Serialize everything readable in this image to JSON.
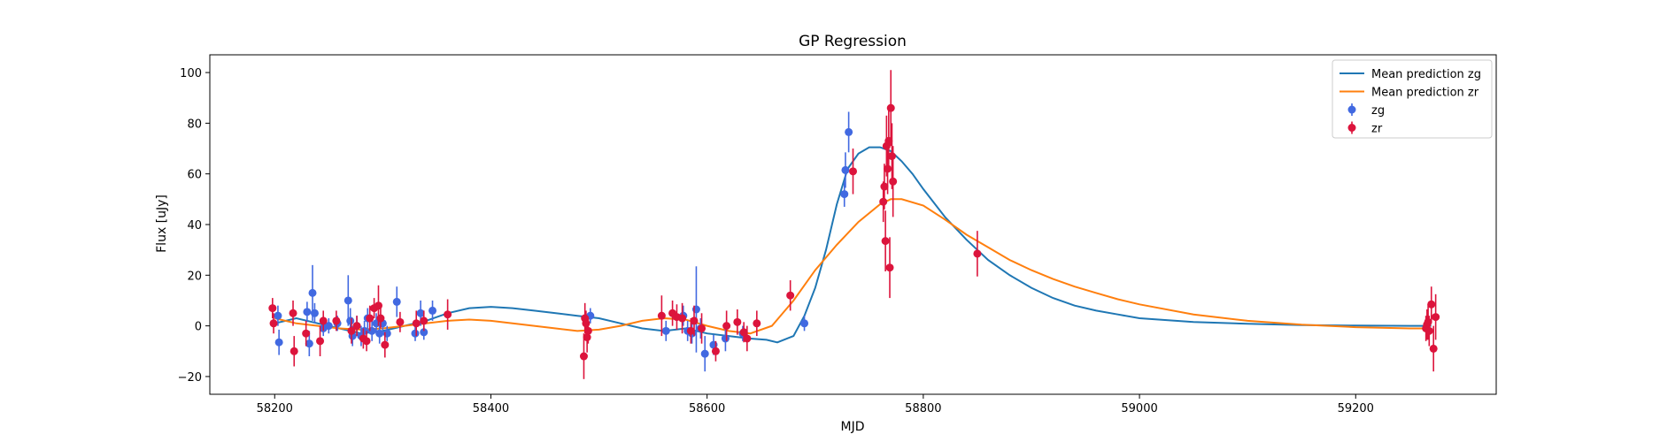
{
  "chart_data": {
    "type": "scatter",
    "title": "GP Regression",
    "xlabel": "MJD",
    "ylabel": "Flux [uJy]",
    "xlim": [
      58140,
      59330
    ],
    "ylim": [
      -27,
      107
    ],
    "xticks": [
      58200,
      58400,
      58600,
      58800,
      59000,
      59200
    ],
    "yticks": [
      -20,
      0,
      20,
      40,
      60,
      80,
      100
    ],
    "grid": false,
    "legend_position": "top-right",
    "lines": [
      {
        "name": "Mean prediction zg",
        "color": "#1f77b4",
        "x": [
          58200,
          58220,
          58240,
          58260,
          58280,
          58300,
          58320,
          58340,
          58360,
          58380,
          58400,
          58420,
          58440,
          58460,
          58480,
          58500,
          58520,
          58540,
          58560,
          58580,
          58600,
          58620,
          58640,
          58655,
          58665,
          58680,
          58690,
          58700,
          58710,
          58720,
          58730,
          58740,
          58750,
          58760,
          58770,
          58780,
          58790,
          58800,
          58820,
          58840,
          58860,
          58880,
          58900,
          58920,
          58940,
          58960,
          58980,
          59000,
          59050,
          59100,
          59150,
          59200,
          59250,
          59270
        ],
        "y": [
          1,
          3,
          1,
          -1,
          -3,
          -2,
          0,
          2,
          5,
          7,
          7.5,
          7,
          6,
          5,
          4,
          3,
          1,
          -1,
          -2,
          -1,
          -3,
          -4,
          -5,
          -5.5,
          -6.5,
          -4,
          4,
          15,
          30,
          48,
          62,
          68,
          70.5,
          70.5,
          69,
          65,
          60,
          54,
          43,
          34,
          26,
          20,
          15,
          11,
          8,
          6,
          4.5,
          3,
          1.5,
          0.8,
          0.3,
          0.1,
          0,
          0
        ]
      },
      {
        "name": "Mean prediction zr",
        "color": "#ff7f0e",
        "x": [
          58200,
          58220,
          58240,
          58260,
          58280,
          58300,
          58320,
          58340,
          58360,
          58380,
          58400,
          58420,
          58440,
          58460,
          58480,
          58500,
          58520,
          58540,
          58560,
          58580,
          58600,
          58620,
          58640,
          58660,
          58680,
          58700,
          58720,
          58740,
          58760,
          58770,
          58780,
          58800,
          58820,
          58840,
          58860,
          58880,
          58900,
          58920,
          58940,
          58960,
          58980,
          59000,
          59050,
          59100,
          59150,
          59200,
          59250,
          59270
        ],
        "y": [
          3,
          1,
          0,
          -1,
          -1.5,
          -1,
          0,
          1,
          2,
          2.5,
          2,
          1,
          0,
          -1,
          -2,
          -1.5,
          0,
          2,
          3,
          2.5,
          0,
          -2,
          -3,
          0,
          10,
          22,
          32,
          41,
          48,
          50,
          50,
          47.5,
          42,
          36,
          31,
          26,
          22,
          18.5,
          15.5,
          13,
          10.5,
          8.5,
          4.5,
          2,
          0.5,
          -0.5,
          -1,
          -1
        ]
      }
    ],
    "series": [
      {
        "name": "zg",
        "color": "#4169e1",
        "points": [
          [
            58203,
            4,
            4
          ],
          [
            58204,
            -6.5,
            5
          ],
          [
            58230,
            5.5,
            4
          ],
          [
            58232,
            -7,
            5
          ],
          [
            58235,
            13,
            11
          ],
          [
            58237,
            5,
            4
          ],
          [
            58245,
            -1,
            3
          ],
          [
            58250,
            0,
            3
          ],
          [
            58258,
            1,
            3
          ],
          [
            58268,
            10,
            10
          ],
          [
            58270,
            2,
            5
          ],
          [
            58272,
            -4,
            4
          ],
          [
            58276,
            0,
            4
          ],
          [
            58280,
            -4,
            4
          ],
          [
            58283,
            -2,
            4
          ],
          [
            58286,
            3,
            4
          ],
          [
            58290,
            -2,
            4
          ],
          [
            58294,
            1,
            4
          ],
          [
            58297,
            -3,
            4
          ],
          [
            58300,
            1,
            3
          ],
          [
            58304,
            -3,
            3
          ],
          [
            58313,
            9.5,
            6
          ],
          [
            58330,
            -3,
            3
          ],
          [
            58335,
            5,
            5
          ],
          [
            58338,
            -2.5,
            3
          ],
          [
            58346,
            6,
            4
          ],
          [
            58492,
            4,
            3
          ],
          [
            58562,
            -2,
            4
          ],
          [
            58578,
            4,
            4
          ],
          [
            58582,
            -2,
            4
          ],
          [
            58586,
            -3,
            4
          ],
          [
            58590,
            6.5,
            17
          ],
          [
            58594,
            -1,
            4
          ],
          [
            58598,
            -11,
            7
          ],
          [
            58606,
            -7.5,
            4
          ],
          [
            58617,
            -5,
            5
          ],
          [
            58633,
            -3,
            3
          ],
          [
            58690,
            1,
            3
          ],
          [
            58727,
            52,
            5
          ],
          [
            58728,
            61.5,
            7
          ],
          [
            58731,
            76.5,
            8
          ]
        ]
      },
      {
        "name": "zr",
        "color": "#dc143c",
        "points": [
          [
            58198,
            7,
            4
          ],
          [
            58199,
            1,
            4
          ],
          [
            58217,
            5,
            5
          ],
          [
            58218,
            -10,
            6
          ],
          [
            58229,
            -3,
            5
          ],
          [
            58242,
            -6,
            6
          ],
          [
            58245,
            2,
            4
          ],
          [
            58257,
            2,
            4
          ],
          [
            58271,
            -2,
            5
          ],
          [
            58276,
            0,
            4
          ],
          [
            58282,
            -5,
            4
          ],
          [
            58285,
            -6,
            4
          ],
          [
            58288,
            3,
            5
          ],
          [
            58292,
            7,
            4
          ],
          [
            58296,
            8,
            8
          ],
          [
            58298,
            3,
            4
          ],
          [
            58302,
            -7.5,
            5
          ],
          [
            58316,
            1.5,
            4
          ],
          [
            58331,
            1,
            5
          ],
          [
            58338,
            2,
            4
          ],
          [
            58360,
            4.5,
            6
          ],
          [
            58486,
            -12,
            9
          ],
          [
            58487,
            3,
            6
          ],
          [
            58488,
            1,
            5
          ],
          [
            58489,
            -4.5,
            6
          ],
          [
            58490,
            -2,
            5
          ],
          [
            58558,
            4,
            8
          ],
          [
            58568,
            5,
            5
          ],
          [
            58572,
            3.5,
            5
          ],
          [
            58577,
            3,
            6
          ],
          [
            58585,
            -2,
            5
          ],
          [
            58588,
            2,
            6
          ],
          [
            58595,
            -1,
            6
          ],
          [
            58608,
            -10,
            4
          ],
          [
            58618,
            0,
            6
          ],
          [
            58628,
            1.5,
            5
          ],
          [
            58634,
            -2.5,
            4
          ],
          [
            58637,
            -5,
            5
          ],
          [
            58646,
            1,
            5
          ],
          [
            58677,
            12,
            6
          ],
          [
            58735,
            61,
            9
          ],
          [
            58763,
            49,
            8
          ],
          [
            58764,
            55,
            9
          ],
          [
            58765,
            33.5,
            12
          ],
          [
            58766,
            71,
            12
          ],
          [
            58767,
            62,
            10
          ],
          [
            58768,
            73,
            12
          ],
          [
            58769,
            23,
            12
          ],
          [
            58770,
            86,
            15
          ],
          [
            58771,
            67,
            13
          ],
          [
            58772,
            57,
            14
          ],
          [
            58850,
            28.5,
            9
          ],
          [
            59265,
            -1,
            5
          ],
          [
            59266,
            0.5,
            6
          ],
          [
            59267,
            1.5,
            7
          ],
          [
            59268,
            -2,
            6
          ],
          [
            59270,
            8.5,
            7
          ],
          [
            59272,
            -9,
            9
          ],
          [
            59274,
            3.5,
            9
          ]
        ]
      }
    ]
  }
}
